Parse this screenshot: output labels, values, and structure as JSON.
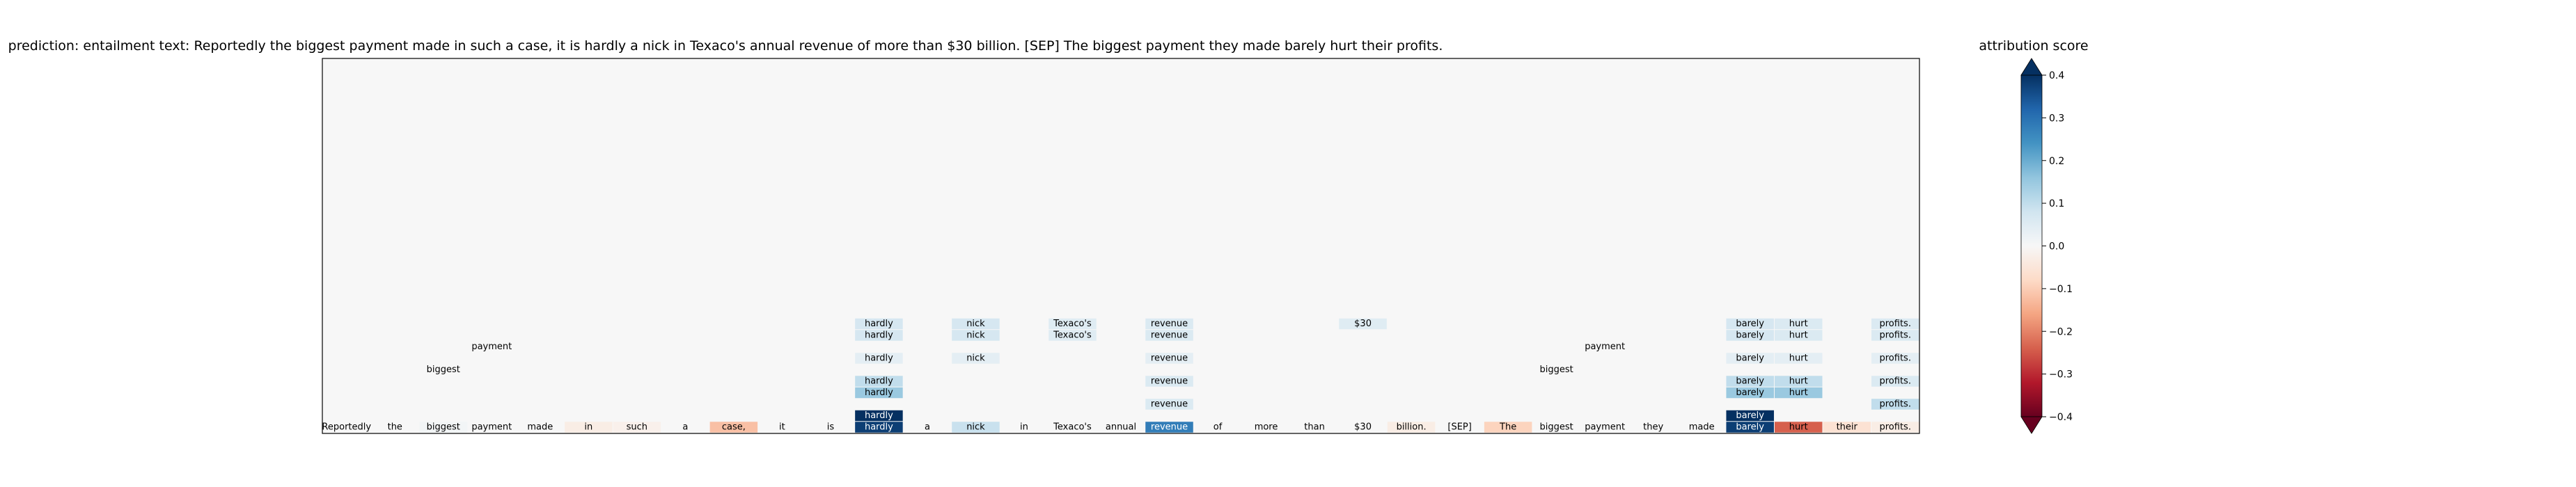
{
  "chart_data": {
    "type": "heatmap",
    "title": "prediction:  entailment     text:  Reportedly the biggest payment made in such a case, it is hardly a nick in Texaco's annual revenue of more than $30 billion. [SEP] The biggest payment they made barely hurt their profits.",
    "colorbar": {
      "label": "attribution score",
      "range": [
        -0.4,
        0.4
      ],
      "ticks": [
        0.4,
        0.3,
        0.2,
        0.1,
        0.0,
        -0.1,
        -0.2,
        -0.3,
        -0.4
      ],
      "tick_labels": [
        "0.4",
        "0.3",
        "0.2",
        "0.1",
        "0.0",
        "−0.1",
        "−0.2",
        "−0.3",
        "−0.4"
      ],
      "extend": "both",
      "colormap": "RdBu"
    },
    "tokens": [
      "Reportedly",
      "the",
      "biggest",
      "payment",
      "made",
      "in",
      "such",
      "a",
      "case,",
      "it",
      "is",
      "hardly",
      "a",
      "nick",
      "in",
      "Texaco's",
      "annual",
      "revenue",
      "of",
      "more",
      "than",
      "$30",
      "billion.",
      "[SEP]",
      "The",
      "biggest",
      "payment",
      "they",
      "made",
      "barely",
      "hurt",
      "their",
      "profits."
    ],
    "bottom_row": [
      0.0,
      0.0,
      0.01,
      0.0,
      0.0,
      -0.03,
      -0.02,
      0.0,
      -0.12,
      0.0,
      0.0,
      0.38,
      0.0,
      0.09,
      0.0,
      0.0,
      0.0,
      0.28,
      0.0,
      0.0,
      0.0,
      0.0,
      -0.03,
      0.0,
      -0.09,
      0.0,
      0.0,
      0.0,
      0.0,
      0.38,
      -0.24,
      -0.06,
      -0.03
    ],
    "upper_cells": [
      {
        "token": "hardly",
        "col": 11,
        "layer": 1,
        "value": 0.4
      },
      {
        "token": "hardly",
        "col": 11,
        "layer": 3,
        "value": 0.15
      },
      {
        "token": "hardly",
        "col": 11,
        "layer": 4,
        "value": 0.1
      },
      {
        "token": "hardly",
        "col": 11,
        "layer": 6,
        "value": 0.04
      },
      {
        "token": "hardly",
        "col": 11,
        "layer": 8,
        "value": 0.07
      },
      {
        "token": "hardly",
        "col": 11,
        "layer": 9,
        "value": 0.07
      },
      {
        "token": "nick",
        "col": 13,
        "layer": 6,
        "value": 0.04
      },
      {
        "token": "nick",
        "col": 13,
        "layer": 8,
        "value": 0.07
      },
      {
        "token": "nick",
        "col": 13,
        "layer": 9,
        "value": 0.07
      },
      {
        "token": "Texaco's",
        "col": 15,
        "layer": 8,
        "value": 0.05
      },
      {
        "token": "Texaco's",
        "col": 15,
        "layer": 9,
        "value": 0.05
      },
      {
        "token": "revenue",
        "col": 17,
        "layer": 2,
        "value": 0.06
      },
      {
        "token": "revenue",
        "col": 17,
        "layer": 4,
        "value": 0.06
      },
      {
        "token": "revenue",
        "col": 17,
        "layer": 6,
        "value": 0.04
      },
      {
        "token": "revenue",
        "col": 17,
        "layer": 8,
        "value": 0.06
      },
      {
        "token": "revenue",
        "col": 17,
        "layer": 9,
        "value": 0.06
      },
      {
        "token": "$30",
        "col": 21,
        "layer": 9,
        "value": 0.05
      },
      {
        "token": "biggest",
        "col": 2,
        "layer": 5,
        "value": 0.0
      },
      {
        "token": "payment",
        "col": 3,
        "layer": 7,
        "value": 0.0
      },
      {
        "token": "biggest",
        "col": 25,
        "layer": 5,
        "value": 0.0
      },
      {
        "token": "payment",
        "col": 26,
        "layer": 7,
        "value": 0.0
      },
      {
        "token": "barely",
        "col": 29,
        "layer": 1,
        "value": 0.4
      },
      {
        "token": "barely",
        "col": 29,
        "layer": 3,
        "value": 0.15
      },
      {
        "token": "barely",
        "col": 29,
        "layer": 4,
        "value": 0.1
      },
      {
        "token": "barely",
        "col": 29,
        "layer": 6,
        "value": 0.04
      },
      {
        "token": "barely",
        "col": 29,
        "layer": 8,
        "value": 0.07
      },
      {
        "token": "barely",
        "col": 29,
        "layer": 9,
        "value": 0.07
      },
      {
        "token": "hurt",
        "col": 30,
        "layer": 3,
        "value": 0.15
      },
      {
        "token": "hurt",
        "col": 30,
        "layer": 4,
        "value": 0.1
      },
      {
        "token": "hurt",
        "col": 30,
        "layer": 6,
        "value": 0.04
      },
      {
        "token": "hurt",
        "col": 30,
        "layer": 8,
        "value": 0.06
      },
      {
        "token": "hurt",
        "col": 30,
        "layer": 9,
        "value": 0.06
      },
      {
        "token": "profits.",
        "col": 32,
        "layer": 2,
        "value": 0.1
      },
      {
        "token": "profits.",
        "col": 32,
        "layer": 4,
        "value": 0.06
      },
      {
        "token": "profits.",
        "col": 32,
        "layer": 6,
        "value": 0.04
      },
      {
        "token": "profits.",
        "col": 32,
        "layer": 8,
        "value": 0.06
      },
      {
        "token": "profits.",
        "col": 32,
        "layer": 9,
        "value": 0.06
      }
    ]
  }
}
